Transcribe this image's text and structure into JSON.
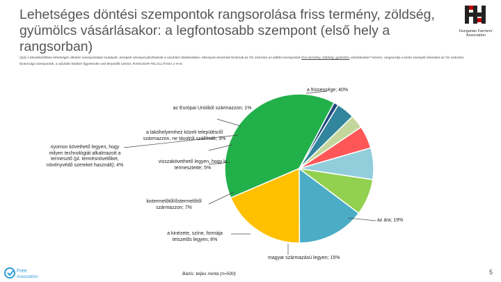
{
  "header": {
    "title": "Lehetséges döntési szempontok rangsorolása friss termény, zöldség, gyümölcs vásárlásakor: a legfontosabb szempont (első hely a rangsorban)",
    "question_text": "(Q2) A következőkben lehetséges döntési szempontokat mutatunk, amelyek szerepet játszhatnak a vásárlási döntésekben. Mennyire lennének fontosak az Ön számára az alábbi szempontok ",
    "question_underlined": "friss termény, zöldség, gyümölcs",
    "question_text_2": " vásárlásakor? Kérem, rangsorolja a listán szereplő elemeket az Ön számára fontossági szempontok, a vásárlás közben figyelembe vett tényezők szerint. RANGSOR FELÁLLÍTÁSA 1-9-IG",
    "logo_caption": "Hungarian Farmers' Association"
  },
  "chart_data": {
    "type": "pie",
    "start_angle_deg": 62,
    "direction": "counterclockwise",
    "slices": [
      {
        "label": "a frissessége; 40%",
        "value": 40,
        "color": "#22b04b"
      },
      {
        "label": "az ára; 19%",
        "value": 19,
        "color": "#ffc000"
      },
      {
        "label": "magyar származású legyen; 15%",
        "value": 15,
        "color": "#4bacc6"
      },
      {
        "label": "a kinézete, színe, formája tetszetős legyen; 8%",
        "value": 8,
        "color": "#92d050"
      },
      {
        "label": "kistermelőtől/őstermelőtől származzon; 7%",
        "value": 7,
        "color": "#92cddc"
      },
      {
        "label": "visszakövethető legyen, hogy ki termesztette; 5%",
        "value": 5,
        "color": "#ff5757"
      },
      {
        "label": "a lakóhelyemhez közeli településről származzon, ne távolról szállítsák; 3%",
        "value": 3,
        "color": "#c3d69b"
      },
      {
        "label": "nyomon követhető legyen, hogy milyen technológiát alkalmazott a termesztő (pl. termésnövelőket, növényvédő szereket használt); 4%",
        "value": 4,
        "color": "#31859c"
      },
      {
        "label": "az Európai Unióból származzon; 1%",
        "value": 1,
        "color": "#1f497d"
      }
    ]
  },
  "labels": {
    "fresh": "a frissessége; 40%",
    "eu": "az Európai Unióból származzon; 1%",
    "local": "a lakóhelyemhez közeli településről származzon, ne távolról szállítsák; 3%",
    "tracking": "nyomon követhető legyen, hogy milyen technológiát alkalmazott a termesztő (pl. termésnövelőket, növényvédő szereket használt); 4%",
    "grower": "visszakövethető legyen, hogy ki termesztette; 5%",
    "small": "kistermelőtől/őstermelőtől származzon; 7%",
    "price": "az ára; 19%",
    "look": "a kinézete, színe, formája tetszetős legyen; 8%",
    "hungarian": "magyar származású legyen; 15%"
  },
  "footer": {
    "base_note": "Bázis: teljes minta (n=500)",
    "page_number": "5",
    "logo_text_top": "Free",
    "logo_text_bottom": "Association"
  }
}
